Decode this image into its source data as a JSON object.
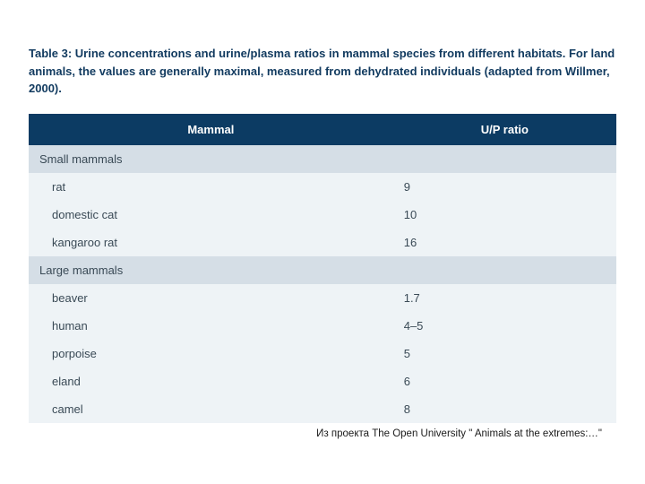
{
  "caption": "Table 3: Urine concentrations and urine/plasma ratios in mammal species from different habitats. For land animals, the values are generally maximal, measured from dehydrated individuals (adapted from Willmer, 2000).",
  "table": {
    "type": "table",
    "columns": [
      "Mammal",
      "U/P ratio"
    ],
    "header_bg": "#0c3b63",
    "header_text_color": "#ffffff",
    "section_bg": "#d5dee6",
    "row_bg": "#eef3f6",
    "text_color": "#3a4a56",
    "caption_color": "#113a5f",
    "font_size_pt": 10,
    "caption_font_size_pt": 10,
    "caption_bold": true,
    "col0_width_pct": 62,
    "col1_width_pct": 38,
    "rows": [
      {
        "type": "section",
        "cells": [
          "Small mammals",
          ""
        ]
      },
      {
        "type": "row",
        "cells": [
          "rat",
          "9"
        ]
      },
      {
        "type": "row",
        "cells": [
          "domestic cat",
          "10"
        ]
      },
      {
        "type": "row",
        "cells": [
          "kangaroo rat",
          "16"
        ]
      },
      {
        "type": "section",
        "cells": [
          "Large mammals",
          ""
        ]
      },
      {
        "type": "row",
        "cells": [
          "beaver",
          "1.7"
        ]
      },
      {
        "type": "row",
        "cells": [
          "human",
          "4–5"
        ]
      },
      {
        "type": "row",
        "cells": [
          "porpoise",
          "5"
        ]
      },
      {
        "type": "row",
        "cells": [
          "eland",
          "6"
        ]
      },
      {
        "type": "row",
        "cells": [
          "camel",
          "8"
        ]
      }
    ]
  },
  "credit": "Из проекта The Open University \" Animals at the extremes:…\""
}
